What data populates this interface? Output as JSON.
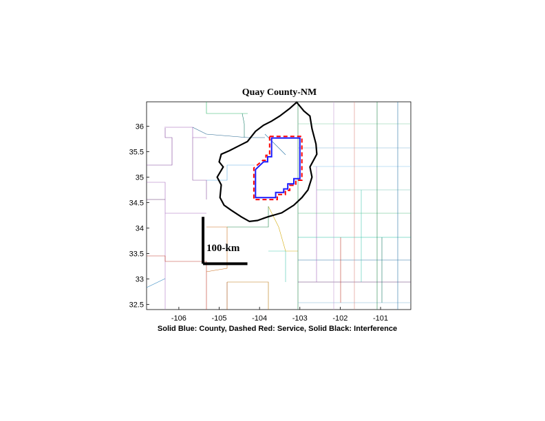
{
  "map": {
    "title": "Quay County-NM",
    "caption": "Solid Blue: County, Dashed Red: Service, Solid Black: Interference",
    "scale_label": "100-km",
    "x_range": [
      -106.8,
      -100.25
    ],
    "y_range": [
      32.4,
      36.48
    ],
    "x_ticks": [
      -106,
      -105,
      -104,
      -103,
      -102,
      -101
    ],
    "y_ticks": [
      32.5,
      33,
      33.5,
      34,
      34.5,
      35,
      35.5,
      36
    ],
    "x_tick_labels": [
      "-106",
      "-105",
      "-104",
      "-103",
      "-102",
      "-101"
    ],
    "y_tick_labels": [
      "32.5",
      "33",
      "33.5",
      "34",
      "34.5",
      "35",
      "35.5",
      "36"
    ],
    "colors": {
      "county": "#1a1aff",
      "service": "#ff0000",
      "interference": "#000000"
    },
    "county_outline": [
      [
        -103.7,
        35.77
      ],
      [
        -103.0,
        35.77
      ],
      [
        -103.0,
        34.97
      ],
      [
        -103.15,
        34.97
      ],
      [
        -103.15,
        34.87
      ],
      [
        -103.3,
        34.87
      ],
      [
        -103.3,
        34.77
      ],
      [
        -103.4,
        34.77
      ],
      [
        -103.4,
        34.7
      ],
      [
        -103.6,
        34.7
      ],
      [
        -103.6,
        34.6
      ],
      [
        -104.1,
        34.6
      ],
      [
        -104.1,
        35.15
      ],
      [
        -103.9,
        35.3
      ],
      [
        -103.8,
        35.3
      ],
      [
        -103.8,
        35.4
      ],
      [
        -103.7,
        35.4
      ]
    ],
    "service_outline": [
      [
        -103.75,
        35.8
      ],
      [
        -102.95,
        35.8
      ],
      [
        -102.95,
        34.94
      ],
      [
        -103.1,
        34.94
      ],
      [
        -103.1,
        34.84
      ],
      [
        -103.25,
        34.84
      ],
      [
        -103.25,
        34.74
      ],
      [
        -103.36,
        34.74
      ],
      [
        -103.36,
        34.66
      ],
      [
        -103.56,
        34.66
      ],
      [
        -103.56,
        34.56
      ],
      [
        -104.14,
        34.56
      ],
      [
        -104.14,
        35.18
      ],
      [
        -103.92,
        35.33
      ],
      [
        -103.84,
        35.33
      ],
      [
        -103.84,
        35.43
      ],
      [
        -103.75,
        35.43
      ]
    ],
    "interference_outline": [
      [
        -103.08,
        36.47
      ],
      [
        -102.9,
        36.3
      ],
      [
        -102.75,
        36.2
      ],
      [
        -102.7,
        35.95
      ],
      [
        -102.6,
        35.65
      ],
      [
        -102.58,
        35.45
      ],
      [
        -102.75,
        35.2
      ],
      [
        -102.7,
        35.0
      ],
      [
        -102.8,
        34.75
      ],
      [
        -102.95,
        34.6
      ],
      [
        -103.15,
        34.45
      ],
      [
        -103.45,
        34.3
      ],
      [
        -103.8,
        34.22
      ],
      [
        -104.05,
        34.15
      ],
      [
        -104.25,
        34.13
      ],
      [
        -104.45,
        34.22
      ],
      [
        -104.7,
        34.35
      ],
      [
        -104.88,
        34.45
      ],
      [
        -104.98,
        34.6
      ],
      [
        -104.95,
        34.85
      ],
      [
        -105.05,
        35.0
      ],
      [
        -104.9,
        35.2
      ],
      [
        -105.0,
        35.3
      ],
      [
        -104.95,
        35.45
      ],
      [
        -104.75,
        35.52
      ],
      [
        -104.5,
        35.62
      ],
      [
        -104.3,
        35.7
      ],
      [
        -104.1,
        35.9
      ],
      [
        -103.9,
        36.02
      ],
      [
        -103.7,
        36.1
      ],
      [
        -103.5,
        36.2
      ],
      [
        -103.25,
        36.35
      ]
    ],
    "scale_bar": {
      "vertical": [
        [
          -105.4,
          34.22
        ],
        [
          -105.4,
          33.3
        ]
      ],
      "horizontal": [
        [
          -105.4,
          33.3
        ],
        [
          -104.3,
          33.3
        ]
      ]
    }
  }
}
